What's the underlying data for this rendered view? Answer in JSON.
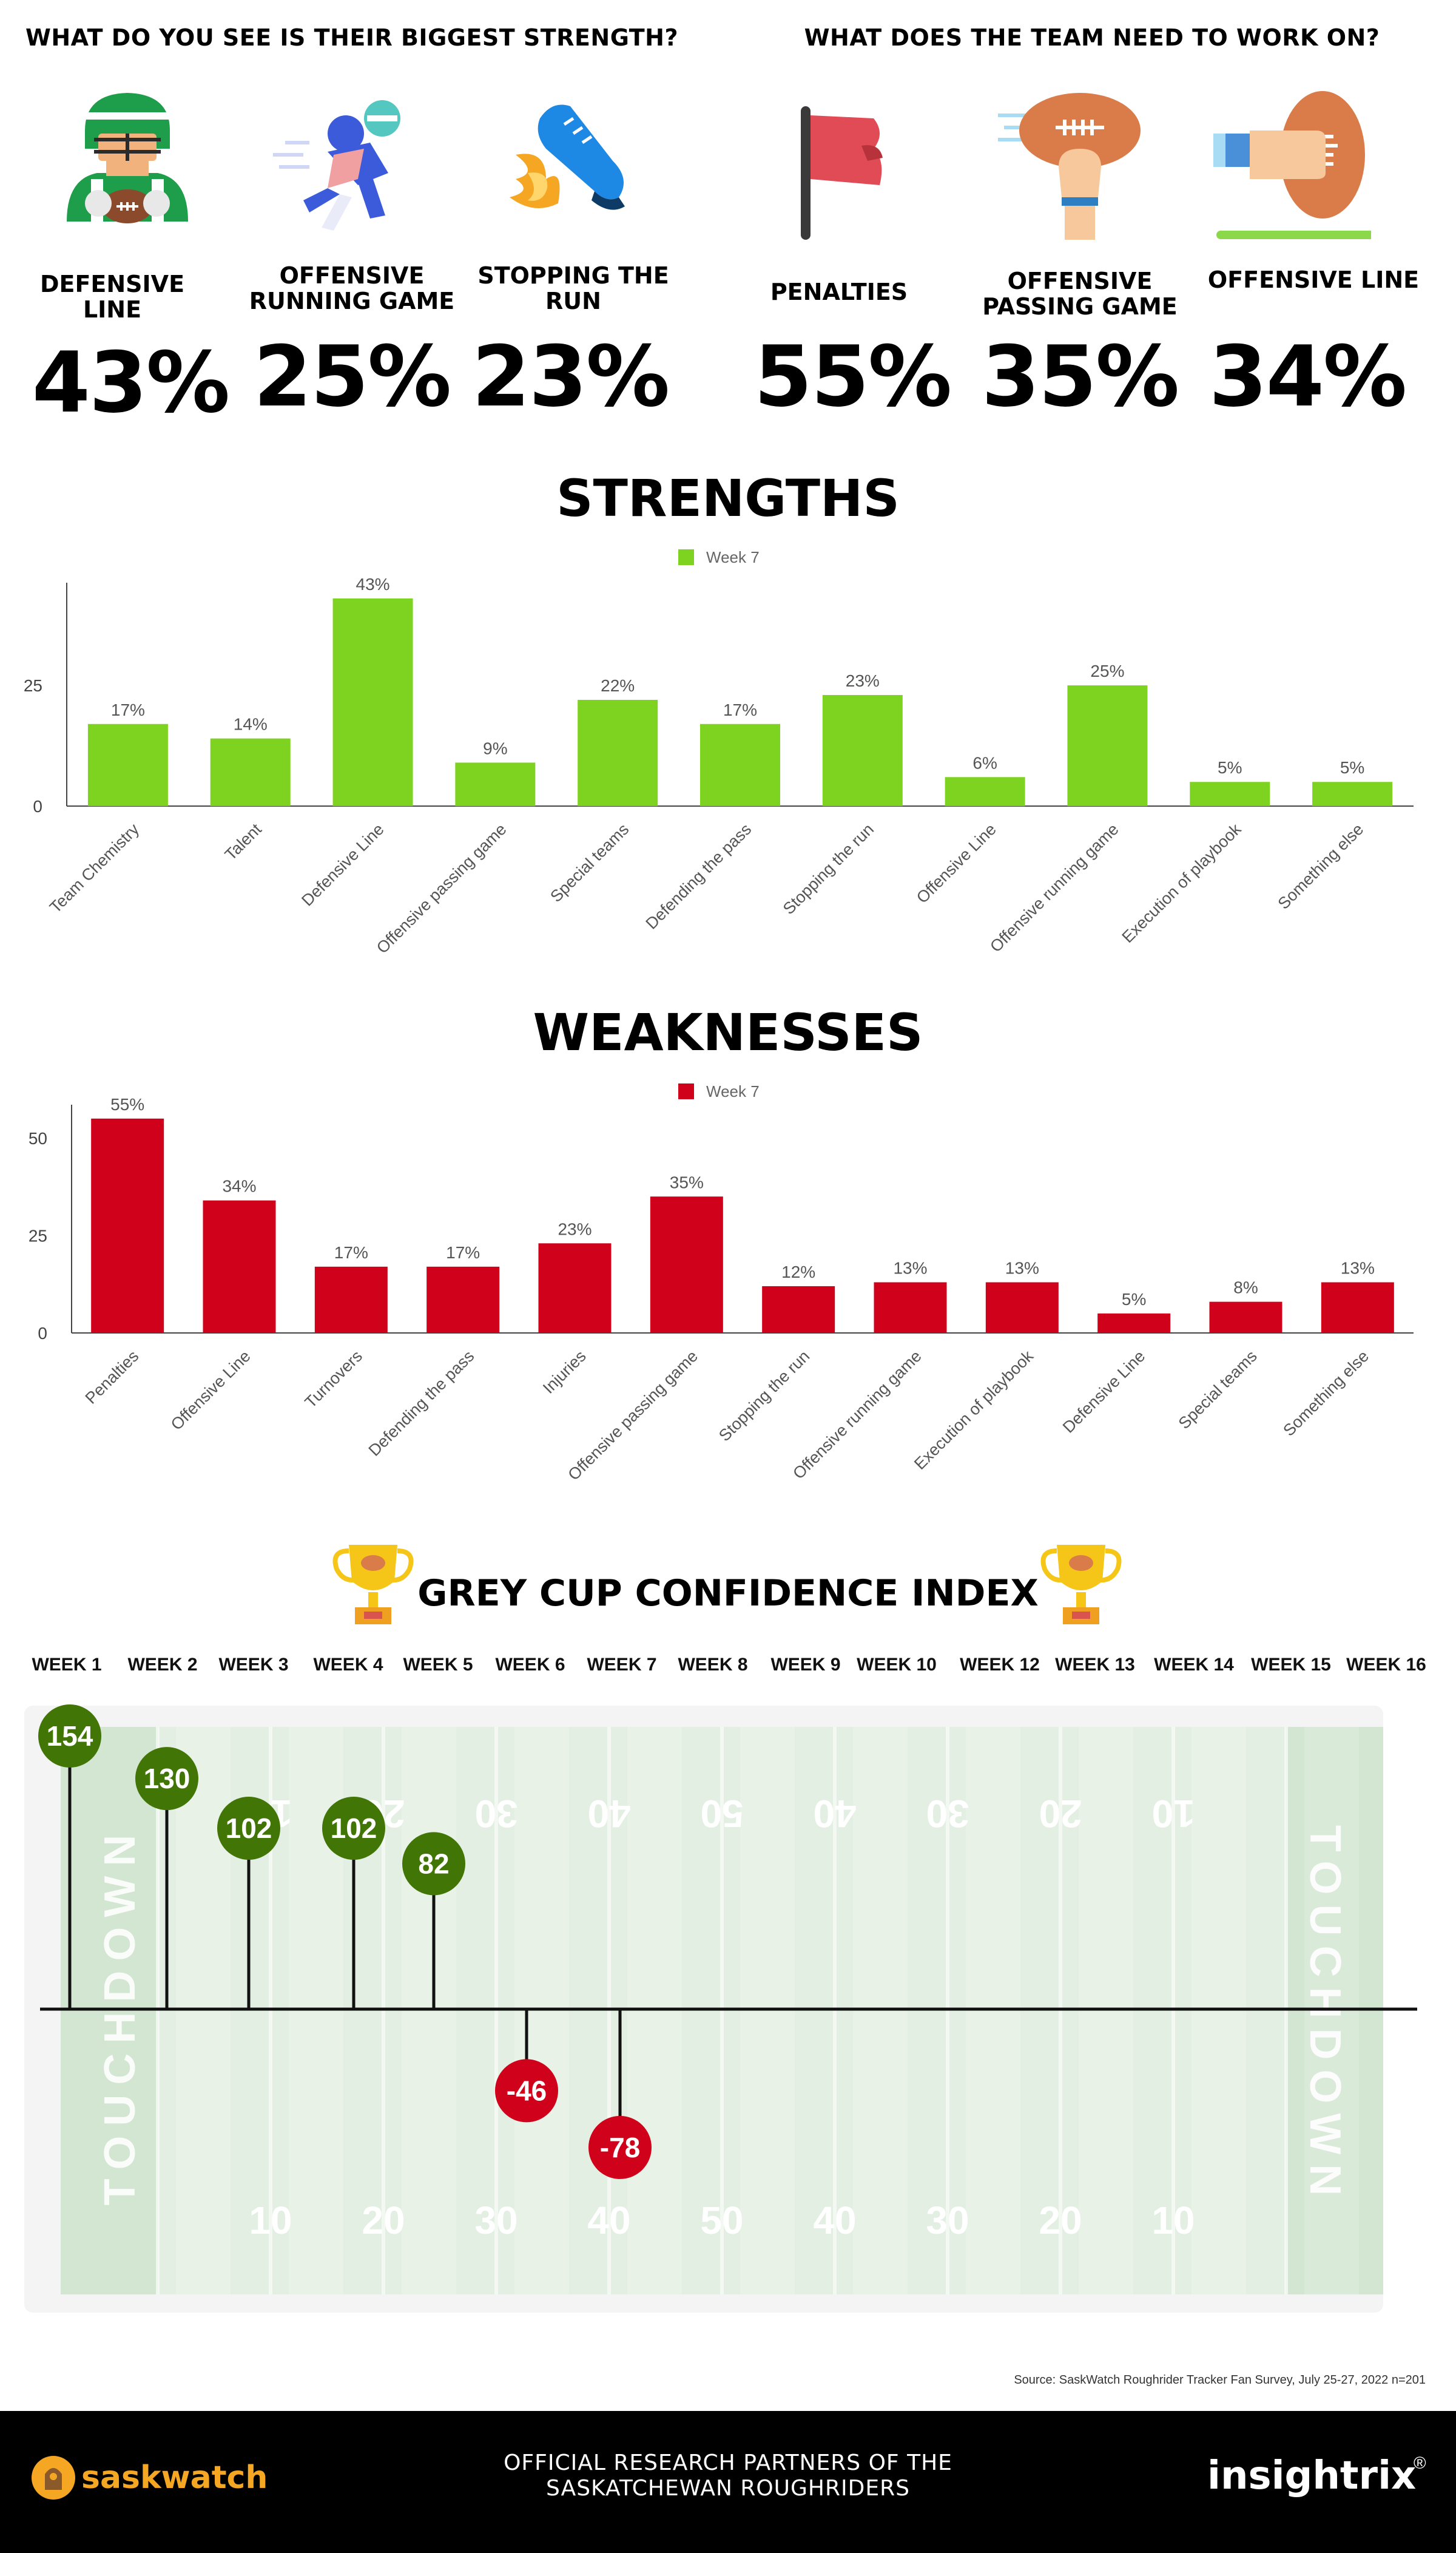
{
  "header": {
    "strength_question": "WHAT DO YOU SEE IS THEIR BIGGEST STRENGTH?",
    "weakness_question": "WHAT DOES THE TEAM NEED TO WORK ON?"
  },
  "top_strengths": [
    {
      "label": "DEFENSIVE LINE",
      "value": "43%",
      "icon": "football-player-icon"
    },
    {
      "label": "OFFENSIVE RUNNING GAME",
      "value": "25%",
      "icon": "tackle-icon"
    },
    {
      "label": "STOPPING THE RUN",
      "value": "23%",
      "icon": "flaming-cleat-icon"
    }
  ],
  "top_weaknesses": [
    {
      "label": "PENALTIES",
      "value": "55%",
      "icon": "penalty-flag-icon"
    },
    {
      "label": "OFFENSIVE PASSING GAME",
      "value": "35%",
      "icon": "thrown-football-icon"
    },
    {
      "label": "OFFENSIVE LINE",
      "value": "34%",
      "icon": "hand-football-icon"
    }
  ],
  "strengths_title": "STRENGTHS",
  "weaknesses_title": "WEAKNESSES",
  "confidence": {
    "title": "GREY CUP CONFIDENCE INDEX",
    "field_text": "TOUCHDOWN",
    "yard_numbers": [
      "10",
      "20",
      "30",
      "40",
      "50",
      "40",
      "30",
      "20",
      "10"
    ]
  },
  "chart_data": [
    {
      "type": "bar",
      "title": "STRENGTHS",
      "color": "#7ed321",
      "legend": "Week 7",
      "legend_position": "top-center",
      "ylim": [
        0,
        45
      ],
      "yticks": [
        0,
        25
      ],
      "grid": false,
      "categories": [
        "Team Chemistry",
        "Talent",
        "Defensive Line",
        "Offensive passing game",
        "Special teams",
        "Defending the pass",
        "Stopping the run",
        "Offensive Line",
        "Offensive running game",
        "Execution of playbook",
        "Something else"
      ],
      "series": [
        {
          "name": "Week 7",
          "values": [
            17,
            14,
            43,
            9,
            22,
            17,
            23,
            6,
            25,
            5,
            5
          ]
        }
      ],
      "labels": [
        "17%",
        "14%",
        "43%",
        "9%",
        "22%",
        "17%",
        "23%",
        "6%",
        "25%",
        "5%",
        "5%"
      ]
    },
    {
      "type": "bar",
      "title": "WEAKNESSES",
      "color": "#d0021b",
      "legend": "Week 7",
      "legend_position": "top-center",
      "ylim": [
        0,
        57
      ],
      "yticks": [
        0,
        25,
        50
      ],
      "grid": false,
      "categories": [
        "Penalties",
        "Offensive Line",
        "Turnovers",
        "Defending the pass",
        "Injuries",
        "Offensive passing game",
        "Stopping the run",
        "Offensive running game",
        "Execution of playbook",
        "Defensive Line",
        "Special teams",
        "Something else"
      ],
      "series": [
        {
          "name": "Week 7",
          "values": [
            55,
            34,
            17,
            17,
            23,
            35,
            12,
            13,
            13,
            5,
            8,
            13
          ]
        }
      ],
      "labels": [
        "55%",
        "34%",
        "17%",
        "17%",
        "23%",
        "35%",
        "12%",
        "13%",
        "13%",
        "5%",
        "8%",
        "13%"
      ]
    },
    {
      "type": "lollipop",
      "title": "GREY CUP CONFIDENCE INDEX",
      "positive_color": "#417505",
      "negative_color": "#d0021b",
      "categories": [
        "WEEK 1",
        "WEEK 2",
        "WEEK 3",
        "WEEK 4",
        "WEEK 5",
        "WEEK 6",
        "WEEK 7",
        "WEEK 8",
        "WEEK 9",
        "WEEK 10",
        "WEEK 12",
        "WEEK 13",
        "WEEK 14",
        "WEEK 15",
        "WEEK 16"
      ],
      "values": [
        154,
        130,
        102,
        102,
        82,
        -46,
        -78,
        null,
        null,
        null,
        null,
        null,
        null,
        null,
        null
      ]
    }
  ],
  "source": "Source: SaskWatch Roughrider Tracker Fan Survey, July 25-27, 2022  n=201",
  "footer": {
    "brand": "saskwatch",
    "partner_line1": "OFFICIAL RESEARCH PARTNERS OF THE",
    "partner_line2": "SASKATCHEWAN ROUGHRIDERS",
    "insightrix": "insightrix",
    "registered": "®"
  }
}
